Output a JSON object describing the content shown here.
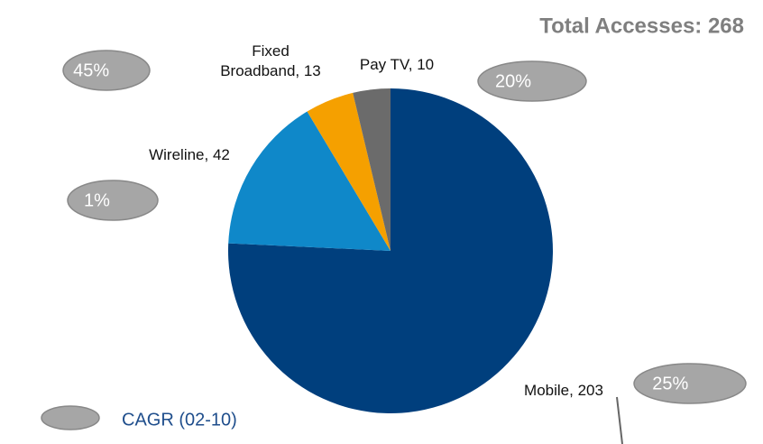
{
  "chart_data": {
    "type": "pie",
    "title": "Total Accesses: 268",
    "categories": [
      "Mobile",
      "Wireline",
      "Fixed Broadband",
      "Pay TV"
    ],
    "values": [
      203,
      42,
      13,
      10
    ],
    "value_labels": [
      "Mobile, 203",
      "Wireline, 42",
      "Fixed Broadband, 13",
      "Pay TV, 10"
    ],
    "colors": [
      "#003f7d",
      "#0f88c9",
      "#f5a000",
      "#6b6b6b"
    ],
    "cagr": {
      "name": "CAGR (02-10)",
      "values": [
        25,
        1,
        45,
        20
      ],
      "value_labels": [
        "25%",
        "1%",
        "45%",
        "20%"
      ],
      "color": "#a6a6a6"
    }
  }
}
